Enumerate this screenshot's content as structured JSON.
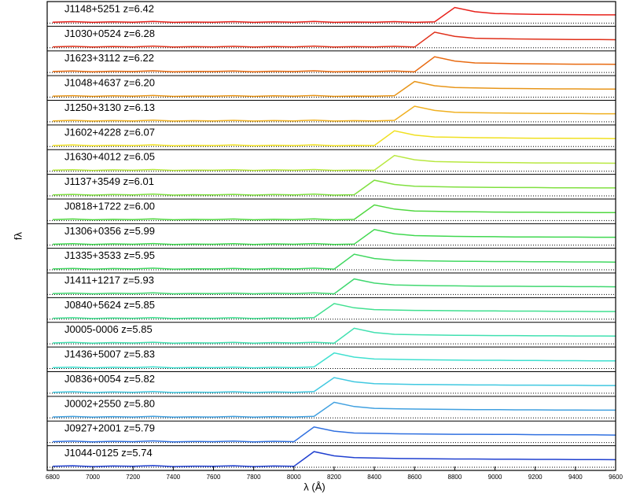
{
  "chart_data": {
    "type": "line",
    "xlabel": "λ (Å)",
    "ylabel": "fλ",
    "xlim": [
      6773,
      9600
    ],
    "xticks": [
      6800,
      7000,
      7200,
      7400,
      7600,
      7800,
      8000,
      8200,
      8400,
      8600,
      8800,
      9000,
      9200,
      9400,
      9600
    ],
    "ylim": [
      0,
      1
    ],
    "x": [
      6800,
      6900,
      7000,
      7100,
      7200,
      7300,
      7400,
      7500,
      7600,
      7700,
      7800,
      7900,
      8000,
      8100,
      8200,
      8300,
      8400,
      8500,
      8600,
      8700,
      8800,
      8900,
      9000,
      9100,
      9200,
      9300,
      9400,
      9500,
      9600
    ],
    "series": [
      {
        "name": "J1148+5251 z=6.42",
        "color": "#e8201a",
        "values": [
          0.05,
          0.08,
          0.04,
          0.07,
          0.05,
          0.09,
          0.04,
          0.06,
          0.05,
          0.08,
          0.04,
          0.07,
          0.05,
          0.09,
          0.04,
          0.06,
          0.05,
          0.08,
          0.04,
          0.07,
          0.85,
          0.62,
          0.52,
          0.5,
          0.48,
          0.47,
          0.46,
          0.45,
          0.45
        ]
      },
      {
        "name": "J1030+0524 z=6.28",
        "color": "#e0301a",
        "values": [
          0.05,
          0.08,
          0.04,
          0.07,
          0.05,
          0.09,
          0.04,
          0.06,
          0.05,
          0.08,
          0.04,
          0.07,
          0.05,
          0.09,
          0.04,
          0.06,
          0.05,
          0.08,
          0.04,
          0.85,
          0.62,
          0.52,
          0.5,
          0.48,
          0.47,
          0.46,
          0.45,
          0.45,
          0.44
        ]
      },
      {
        "name": "J1623+3112 z=6.22",
        "color": "#e86a10",
        "values": [
          0.05,
          0.08,
          0.04,
          0.07,
          0.05,
          0.09,
          0.04,
          0.06,
          0.05,
          0.08,
          0.04,
          0.07,
          0.05,
          0.09,
          0.04,
          0.06,
          0.05,
          0.08,
          0.04,
          0.85,
          0.62,
          0.52,
          0.5,
          0.48,
          0.47,
          0.46,
          0.45,
          0.45,
          0.44
        ]
      },
      {
        "name": "J1048+4637 z=6.20",
        "color": "#e8961a",
        "values": [
          0.05,
          0.08,
          0.04,
          0.07,
          0.05,
          0.09,
          0.04,
          0.06,
          0.05,
          0.08,
          0.04,
          0.07,
          0.05,
          0.09,
          0.04,
          0.06,
          0.05,
          0.08,
          0.85,
          0.62,
          0.52,
          0.5,
          0.48,
          0.47,
          0.46,
          0.45,
          0.45,
          0.44,
          0.44
        ]
      },
      {
        "name": "J1250+3130 z=6.13",
        "color": "#f0b020",
        "values": [
          0.05,
          0.08,
          0.04,
          0.07,
          0.05,
          0.09,
          0.04,
          0.06,
          0.05,
          0.08,
          0.04,
          0.07,
          0.05,
          0.09,
          0.04,
          0.06,
          0.05,
          0.08,
          0.85,
          0.62,
          0.52,
          0.5,
          0.48,
          0.47,
          0.46,
          0.45,
          0.45,
          0.44,
          0.44
        ]
      },
      {
        "name": "J1602+4228 z=6.07",
        "color": "#f0e020",
        "values": [
          0.05,
          0.08,
          0.04,
          0.07,
          0.05,
          0.09,
          0.04,
          0.06,
          0.05,
          0.08,
          0.04,
          0.07,
          0.05,
          0.09,
          0.04,
          0.06,
          0.05,
          0.85,
          0.62,
          0.52,
          0.5,
          0.48,
          0.47,
          0.46,
          0.45,
          0.45,
          0.44,
          0.44,
          0.43
        ]
      },
      {
        "name": "J1630+4012 z=6.05",
        "color": "#b8e840",
        "values": [
          0.05,
          0.08,
          0.04,
          0.07,
          0.05,
          0.09,
          0.04,
          0.06,
          0.05,
          0.08,
          0.04,
          0.07,
          0.05,
          0.09,
          0.04,
          0.06,
          0.05,
          0.85,
          0.62,
          0.52,
          0.5,
          0.48,
          0.47,
          0.46,
          0.45,
          0.45,
          0.44,
          0.44,
          0.43
        ]
      },
      {
        "name": "J1137+3549 z=6.01",
        "color": "#80e040",
        "values": [
          0.05,
          0.08,
          0.04,
          0.07,
          0.05,
          0.09,
          0.04,
          0.06,
          0.05,
          0.08,
          0.04,
          0.07,
          0.05,
          0.09,
          0.04,
          0.06,
          0.85,
          0.62,
          0.52,
          0.5,
          0.48,
          0.47,
          0.46,
          0.45,
          0.45,
          0.44,
          0.44,
          0.43,
          0.43
        ]
      },
      {
        "name": "J0818+1722 z=6.00",
        "color": "#50d840",
        "values": [
          0.05,
          0.08,
          0.04,
          0.07,
          0.05,
          0.09,
          0.04,
          0.06,
          0.05,
          0.08,
          0.04,
          0.07,
          0.05,
          0.09,
          0.04,
          0.06,
          0.85,
          0.62,
          0.52,
          0.5,
          0.48,
          0.47,
          0.46,
          0.45,
          0.45,
          0.44,
          0.44,
          0.43,
          0.43
        ]
      },
      {
        "name": "J1306+0356 z=5.99",
        "color": "#40d850",
        "values": [
          0.05,
          0.08,
          0.04,
          0.07,
          0.05,
          0.09,
          0.04,
          0.06,
          0.05,
          0.08,
          0.04,
          0.07,
          0.05,
          0.09,
          0.04,
          0.06,
          0.85,
          0.62,
          0.52,
          0.5,
          0.48,
          0.47,
          0.46,
          0.45,
          0.45,
          0.44,
          0.44,
          0.43,
          0.43
        ]
      },
      {
        "name": "J1335+3533 z=5.95",
        "color": "#40d860",
        "values": [
          0.05,
          0.08,
          0.04,
          0.07,
          0.05,
          0.09,
          0.04,
          0.06,
          0.05,
          0.08,
          0.04,
          0.07,
          0.05,
          0.09,
          0.04,
          0.85,
          0.62,
          0.52,
          0.5,
          0.48,
          0.47,
          0.46,
          0.45,
          0.45,
          0.44,
          0.44,
          0.43,
          0.43,
          0.42
        ]
      },
      {
        "name": "J1411+1217 z=5.93",
        "color": "#40d870",
        "values": [
          0.05,
          0.08,
          0.04,
          0.07,
          0.05,
          0.09,
          0.04,
          0.06,
          0.05,
          0.08,
          0.04,
          0.07,
          0.05,
          0.09,
          0.04,
          0.85,
          0.62,
          0.52,
          0.5,
          0.48,
          0.47,
          0.46,
          0.45,
          0.45,
          0.44,
          0.44,
          0.43,
          0.43,
          0.42
        ]
      },
      {
        "name": "J0840+5624 z=5.85",
        "color": "#40e090",
        "values": [
          0.05,
          0.08,
          0.04,
          0.07,
          0.05,
          0.09,
          0.04,
          0.06,
          0.05,
          0.08,
          0.04,
          0.07,
          0.05,
          0.09,
          0.85,
          0.62,
          0.52,
          0.5,
          0.48,
          0.47,
          0.46,
          0.45,
          0.45,
          0.44,
          0.44,
          0.43,
          0.43,
          0.42,
          0.42
        ]
      },
      {
        "name": "J0005-0006 z=5.85",
        "color": "#40e0b0",
        "values": [
          0.05,
          0.08,
          0.04,
          0.07,
          0.05,
          0.09,
          0.04,
          0.06,
          0.05,
          0.08,
          0.04,
          0.07,
          0.05,
          0.09,
          0.04,
          0.85,
          0.62,
          0.52,
          0.5,
          0.48,
          0.47,
          0.46,
          0.45,
          0.45,
          0.44,
          0.44,
          0.43,
          0.43,
          0.42
        ]
      },
      {
        "name": "J1436+5007 z=5.83",
        "color": "#40e0d0",
        "values": [
          0.05,
          0.08,
          0.04,
          0.07,
          0.05,
          0.09,
          0.04,
          0.06,
          0.05,
          0.08,
          0.04,
          0.07,
          0.05,
          0.09,
          0.85,
          0.62,
          0.52,
          0.5,
          0.48,
          0.47,
          0.46,
          0.45,
          0.45,
          0.44,
          0.44,
          0.43,
          0.43,
          0.42,
          0.42
        ]
      },
      {
        "name": "J0836+0054 z=5.82",
        "color": "#40c8e0",
        "values": [
          0.05,
          0.08,
          0.04,
          0.07,
          0.05,
          0.09,
          0.04,
          0.06,
          0.05,
          0.08,
          0.04,
          0.07,
          0.05,
          0.09,
          0.85,
          0.62,
          0.52,
          0.5,
          0.48,
          0.47,
          0.46,
          0.45,
          0.45,
          0.44,
          0.44,
          0.43,
          0.43,
          0.42,
          0.42
        ]
      },
      {
        "name": "J0002+2550 z=5.80",
        "color": "#40a0e0",
        "values": [
          0.05,
          0.08,
          0.04,
          0.07,
          0.05,
          0.09,
          0.04,
          0.06,
          0.05,
          0.08,
          0.04,
          0.07,
          0.05,
          0.09,
          0.85,
          0.62,
          0.52,
          0.5,
          0.48,
          0.47,
          0.46,
          0.45,
          0.45,
          0.44,
          0.44,
          0.43,
          0.43,
          0.42,
          0.42
        ]
      },
      {
        "name": "J0927+2001 z=5.79",
        "color": "#3070e0",
        "values": [
          0.05,
          0.08,
          0.04,
          0.07,
          0.05,
          0.09,
          0.04,
          0.06,
          0.05,
          0.08,
          0.04,
          0.07,
          0.05,
          0.85,
          0.62,
          0.52,
          0.5,
          0.48,
          0.47,
          0.46,
          0.45,
          0.45,
          0.44,
          0.44,
          0.43,
          0.43,
          0.42,
          0.42,
          0.41
        ]
      },
      {
        "name": "J1044-0125 z=5.74",
        "color": "#2040d0",
        "values": [
          0.05,
          0.08,
          0.04,
          0.07,
          0.05,
          0.09,
          0.04,
          0.06,
          0.05,
          0.08,
          0.04,
          0.07,
          0.05,
          0.85,
          0.62,
          0.52,
          0.5,
          0.48,
          0.47,
          0.46,
          0.45,
          0.45,
          0.44,
          0.44,
          0.43,
          0.43,
          0.42,
          0.42,
          0.41
        ]
      }
    ]
  }
}
